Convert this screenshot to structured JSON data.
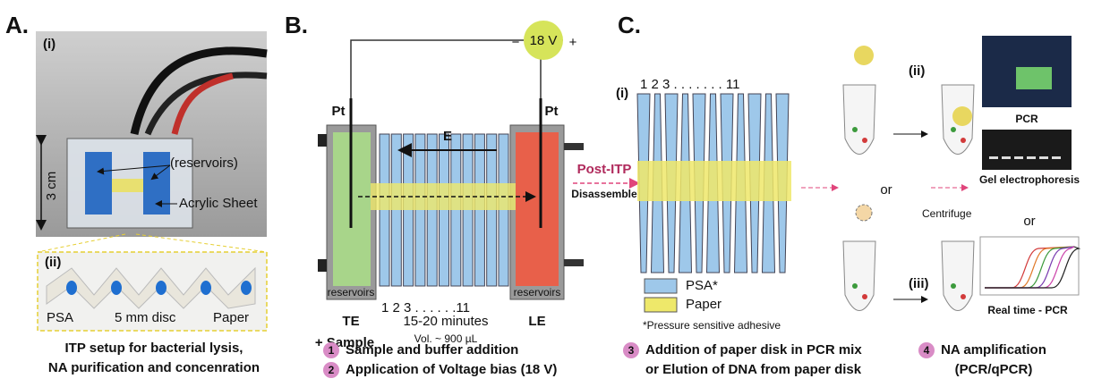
{
  "panel_a": {
    "label": "A.",
    "sub_i": "(i)",
    "scale": "3 cm",
    "reservoirs": "(reservoirs)",
    "acrylic": "Acrylic Sheet",
    "sub_ii": "(ii)",
    "psa": "PSA",
    "disc": "5 mm disc",
    "paper": "Paper",
    "caption": [
      "ITP setup for bacterial lysis,",
      "NA purification and concenration"
    ]
  },
  "panel_b": {
    "label": "B.",
    "voltage": "18 V",
    "minus": "−",
    "plus": "+",
    "pt_left": "Pt",
    "pt_right": "Pt",
    "field": "E",
    "reservoir_left": "reservoirs",
    "reservoir_right": "reservoirs",
    "numbering": "1 2 3 . . . . . .11",
    "te": "TE",
    "sample": "+ Sample",
    "time": "15-20 minutes",
    "volume": "Vol. ~ 900 µL",
    "le": "LE"
  },
  "panel_c": {
    "label": "C.",
    "sub_i": "(i)",
    "numbering": "1 2 3 . . . . . . . 11",
    "sub_ii": "(ii)",
    "sub_iii": "(iii)",
    "post_itp": "Post-ITP",
    "disassemble": "Disassemble",
    "legend": [
      "PSA*",
      "Paper"
    ],
    "footnote": "*Pressure sensitive adhesive",
    "or_middle": "or",
    "centrifuge": "Centrifuge",
    "pcr": "PCR",
    "gel": "Gel electrophoresis",
    "or_right": "or",
    "qpcr": "Real time - PCR"
  },
  "steps": [
    {
      "number": "1",
      "text": [
        "Sample and buffer addition"
      ]
    },
    {
      "number": "2",
      "text": [
        "Application of Voltage bias (18 V)"
      ]
    },
    {
      "number": "3",
      "text": [
        "Addition of paper disk in PCR mix",
        "or Elution of DNA from paper disk"
      ]
    },
    {
      "number": "4",
      "text": [
        "NA amplification",
        "(PCR/qPCR)"
      ]
    }
  ]
}
